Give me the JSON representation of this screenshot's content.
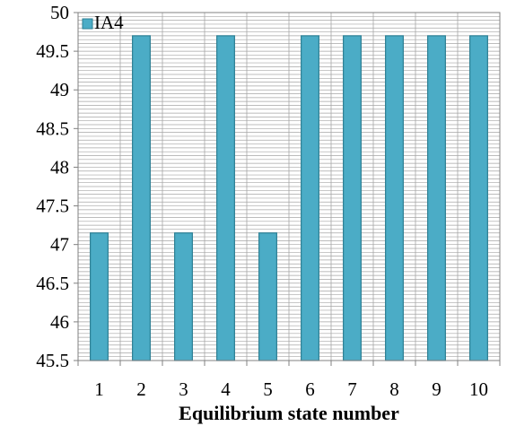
{
  "chart_data": {
    "type": "bar",
    "categories": [
      "1",
      "2",
      "3",
      "4",
      "5",
      "6",
      "7",
      "8",
      "9",
      "10"
    ],
    "series": [
      {
        "name": "IA4",
        "values": [
          47.15,
          49.7,
          47.15,
          49.7,
          47.15,
          49.7,
          49.7,
          49.7,
          49.7,
          49.7
        ]
      }
    ],
    "xlabel": "Equilibrium state number",
    "ylabel": "",
    "ylim": [
      45.5,
      50
    ],
    "yticks": [
      "45.5",
      "46",
      "46.5",
      "47",
      "47.5",
      "48",
      "48.5",
      "49",
      "49.5",
      "50"
    ],
    "ytick_values": [
      45.5,
      46,
      46.5,
      47,
      47.5,
      48,
      48.5,
      49,
      49.5,
      50
    ],
    "grid": "horizontal minor and major lines, vertical lines between categories",
    "legend_position": "top-left",
    "colors": {
      "bar_fill": "#4bacc6",
      "bar_stroke": "#2c7f94",
      "grid": "#a6a6a6",
      "axis": "#808080"
    }
  }
}
